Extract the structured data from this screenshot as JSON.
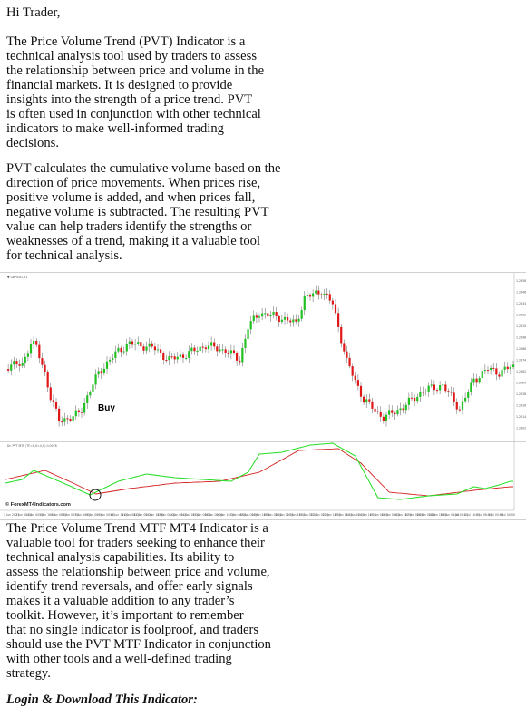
{
  "greeting": "Hi Trader,",
  "intro_lines": [
    "The Price Volume Trend (PVT) Indicator is a",
    "technical analysis tool used by traders to assess",
    "the relationship between price and volume in the",
    "financial markets. It is designed to provide",
    "insights into the strength of a price trend. PVT",
    "is often used in conjunction with other technical",
    "indicators to make well-informed trading",
    "decisions."
  ],
  "calc_lines": [
    "PVT calculates the cumulative volume based on the",
    "direction of price movements. When prices rise,",
    "positive volume is added, and when prices fall,",
    "negative volume is subtracted. The resulting PVT",
    "value can help traders identify the strengths or",
    "weaknesses of a trend, making it a valuable tool",
    "for technical analysis."
  ],
  "chart": {
    "buy_label": "Buy",
    "watermark": "© ForexMT4Indicators.com",
    "header_label": "▼ GBPUSD,H1",
    "indicator_label": "Dr. PVT MTF (TF=1,X=4,O) 0.0078",
    "colors": {
      "bull": "#22c022",
      "bear": "#e01818",
      "signal": "#d42020",
      "pvt": "#2ee02e"
    },
    "price_ticks": [
      "1.2658",
      "1.2646",
      "1.2634",
      "1.2622",
      "1.2610",
      "1.2598",
      "1.2586",
      "1.2574",
      "1.2562",
      "1.2550",
      "1.2538",
      "1.2526",
      "1.2514",
      "1.2502"
    ],
    "time_ticks": [
      "3 Jun 2023",
      "3 Jun 08:00",
      "4 Jun 00:00",
      "5 Jun 16:00",
      "6 Jun 08:00",
      "7 Jun 00:00",
      "7 Jun 16:00",
      "8 Jun 08:00",
      "9 Jun 00:00",
      "10 Jun 16:00",
      "11 Jun 08:00",
      "12 Jun 00:00",
      "12 Jun 16:00",
      "13 Jun 08:00",
      "14 Jun 00:00",
      "14 Jun 16:00",
      "15 Jun 08:00",
      "16 Jun 00:00",
      "16 Jun 16:00",
      "17 Jun 08:00",
      "18 Jun 00:00",
      "18 Jun 16:00",
      "19 Jun 08:00",
      "20 Jun 00:00",
      "20 Jun 16:00",
      "21 Jun 08:00",
      "22 Jun 00:00",
      "22 Jun 16:00",
      "23 Jun 08:00",
      "24 Jun 00:00",
      "24 Jun 16:00",
      "25 Jun 08:00",
      "26 Jun 00:00",
      "26 Jun 16:00",
      "27 Jun 08:00",
      "28 Jun 00:00",
      "28 Jun 16:00",
      "29 Jun 08:00",
      "1 Jul 00:00",
      "2 Jul 16:00",
      "3 Jul 08:00",
      "4 Jul 00:00",
      "5 Jul 00:00"
    ]
  },
  "closing_lines": [
    "The Price Volume Trend MTF MT4 Indicator is a",
    "valuable tool for traders seeking to enhance their",
    "technical analysis capabilities. Its ability to",
    "assess the relationship between price and volume,",
    "identify trend reversals, and offer early signals",
    "makes it a valuable addition to any trader’s",
    "toolkit. However, it’s important to remember",
    "that no single indicator is foolproof, and traders",
    "should use the PVT MTF Indicator in conjunction",
    "with other tools and a well-defined trading",
    "strategy."
  ],
  "cta": "Login & Download This Indicator:"
}
